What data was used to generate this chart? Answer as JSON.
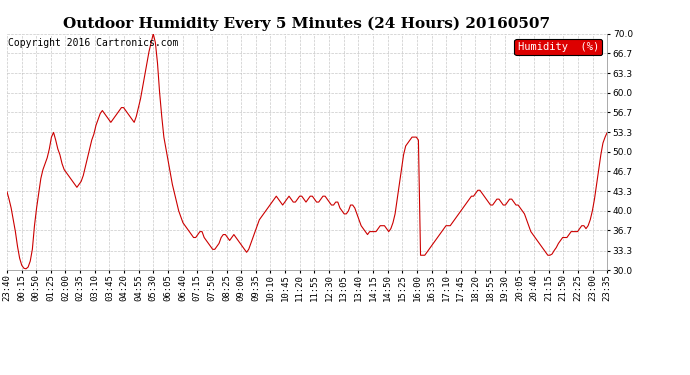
{
  "title": "Outdoor Humidity Every 5 Minutes (24 Hours) 20160507",
  "copyright": "Copyright 2016 Cartronics.com",
  "legend_label": "Humidity  (%)",
  "legend_bg": "#dd0000",
  "legend_text_color": "#ffffff",
  "line_color": "#cc0000",
  "bg_color": "#ffffff",
  "grid_color": "#bbbbbb",
  "ylim": [
    30.0,
    70.0
  ],
  "yticks": [
    30.0,
    33.3,
    36.7,
    40.0,
    43.3,
    46.7,
    50.0,
    53.3,
    56.7,
    60.0,
    63.3,
    66.7,
    70.0
  ],
  "title_fontsize": 11,
  "copyright_fontsize": 7,
  "tick_fontsize": 6.5,
  "humidity_data": [
    43.3,
    42.0,
    40.5,
    38.5,
    36.5,
    34.0,
    32.0,
    30.8,
    30.3,
    30.2,
    30.5,
    31.5,
    33.5,
    37.5,
    40.5,
    43.0,
    45.5,
    47.0,
    48.0,
    49.0,
    50.5,
    52.5,
    53.3,
    52.0,
    50.5,
    49.5,
    48.0,
    47.0,
    46.5,
    46.0,
    45.5,
    45.0,
    44.5,
    44.0,
    44.5,
    45.0,
    46.0,
    47.5,
    49.0,
    50.5,
    52.0,
    53.0,
    54.5,
    55.5,
    56.5,
    57.0,
    56.5,
    56.0,
    55.5,
    55.0,
    55.5,
    56.0,
    56.5,
    57.0,
    57.5,
    57.5,
    57.0,
    56.5,
    56.0,
    55.5,
    55.0,
    56.0,
    57.5,
    59.0,
    61.0,
    63.0,
    65.0,
    67.0,
    68.5,
    70.0,
    68.5,
    65.0,
    60.0,
    56.0,
    52.5,
    50.5,
    48.5,
    46.5,
    44.5,
    43.0,
    41.5,
    40.0,
    39.0,
    38.0,
    37.5,
    37.0,
    36.5,
    36.0,
    35.5,
    35.5,
    36.0,
    36.5,
    36.5,
    35.5,
    35.0,
    34.5,
    34.0,
    33.5,
    33.5,
    34.0,
    34.5,
    35.5,
    36.0,
    36.0,
    35.5,
    35.0,
    35.5,
    36.0,
    35.5,
    35.0,
    34.5,
    34.0,
    33.5,
    33.0,
    33.5,
    34.5,
    35.5,
    36.5,
    37.5,
    38.5,
    39.0,
    39.5,
    40.0,
    40.5,
    41.0,
    41.5,
    42.0,
    42.5,
    42.0,
    41.5,
    41.0,
    41.5,
    42.0,
    42.5,
    42.0,
    41.5,
    41.5,
    42.0,
    42.5,
    42.5,
    42.0,
    41.5,
    42.0,
    42.5,
    42.5,
    42.0,
    41.5,
    41.5,
    42.0,
    42.5,
    42.5,
    42.0,
    41.5,
    41.0,
    41.0,
    41.5,
    41.5,
    40.5,
    40.0,
    39.5,
    39.5,
    40.0,
    41.0,
    41.0,
    40.5,
    39.5,
    38.5,
    37.5,
    37.0,
    36.5,
    36.0,
    36.5,
    36.5,
    36.5,
    36.5,
    37.0,
    37.5,
    37.5,
    37.5,
    37.0,
    36.5,
    37.0,
    38.0,
    39.5,
    42.0,
    44.5,
    47.0,
    49.5,
    51.0,
    51.5,
    52.0,
    52.5,
    52.5,
    52.5,
    52.0,
    32.5,
    32.5,
    32.5,
    33.0,
    33.5,
    34.0,
    34.5,
    35.0,
    35.5,
    36.0,
    36.5,
    37.0,
    37.5,
    37.5,
    37.5,
    38.0,
    38.5,
    39.0,
    39.5,
    40.0,
    40.5,
    41.0,
    41.5,
    42.0,
    42.5,
    42.5,
    43.0,
    43.5,
    43.5,
    43.0,
    42.5,
    42.0,
    41.5,
    41.0,
    41.0,
    41.5,
    42.0,
    42.0,
    41.5,
    41.0,
    41.0,
    41.5,
    42.0,
    42.0,
    41.5,
    41.0,
    41.0,
    40.5,
    40.0,
    39.5,
    38.5,
    37.5,
    36.5,
    36.0,
    35.5,
    35.0,
    34.5,
    34.0,
    33.5,
    33.0,
    32.5,
    32.5,
    32.7,
    33.3,
    33.8,
    34.5,
    35.0,
    35.5,
    35.5,
    35.5,
    36.0,
    36.5,
    36.5,
    36.5,
    36.5,
    37.0,
    37.5,
    37.5,
    37.0,
    37.5,
    38.5,
    40.0,
    42.0,
    44.5,
    47.0,
    49.5,
    51.5,
    52.5,
    53.3
  ],
  "xtick_labels": [
    "23:40",
    "00:15",
    "00:50",
    "01:25",
    "02:00",
    "02:35",
    "03:10",
    "03:45",
    "04:20",
    "04:55",
    "05:30",
    "06:05",
    "06:40",
    "07:15",
    "07:50",
    "08:25",
    "09:00",
    "09:35",
    "10:10",
    "10:45",
    "11:20",
    "11:55",
    "12:30",
    "13:05",
    "13:40",
    "14:15",
    "14:50",
    "15:25",
    "16:00",
    "16:35",
    "17:10",
    "17:45",
    "18:20",
    "18:55",
    "19:30",
    "20:05",
    "20:40",
    "21:15",
    "21:50",
    "22:25",
    "23:00",
    "23:35"
  ]
}
